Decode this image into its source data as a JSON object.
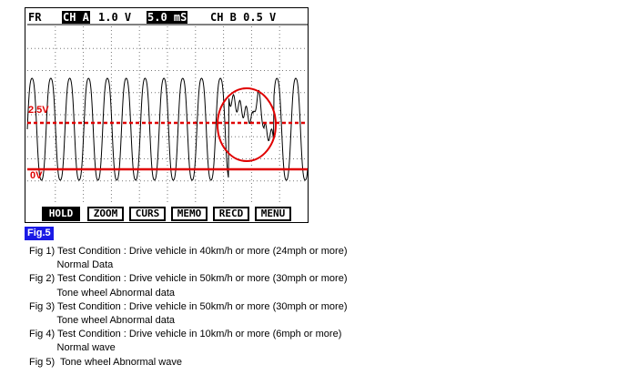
{
  "scope": {
    "mode": "FR",
    "channel_a": "CH A",
    "volts_a": "1.0 V",
    "timebase": "5.0 mS",
    "channel_b": "CH B 0.5 V",
    "level_25": "2.5V",
    "level_0": "0V",
    "trace_color": "#000000",
    "marker_color": "#e00000",
    "buttons": [
      "HOLD",
      "ZOOM",
      "CURS",
      "MEMO",
      "RECD",
      "MENU"
    ],
    "selected_button": "HOLD"
  },
  "figure_tag": "Fig.5",
  "caption": [
    "Fig 1) Test Condition : Drive vehicle in 40km/h or more (24mph or more)",
    "          Normal Data",
    "Fig 2) Test Condition : Drive vehicle in 50km/h or more (30mph or more)",
    "          Tone wheel Abnormal data",
    "Fig 3) Test Condition : Drive vehicle in 50km/h or more (30mph or more)",
    "          Tone wheel Abnormal data",
    "Fig 4) Test Condition : Drive vehicle in 10km/h or more (6mph or more)",
    "          Normal wave",
    "Fig 5)  Tone wheel Abnormal wave"
  ]
}
